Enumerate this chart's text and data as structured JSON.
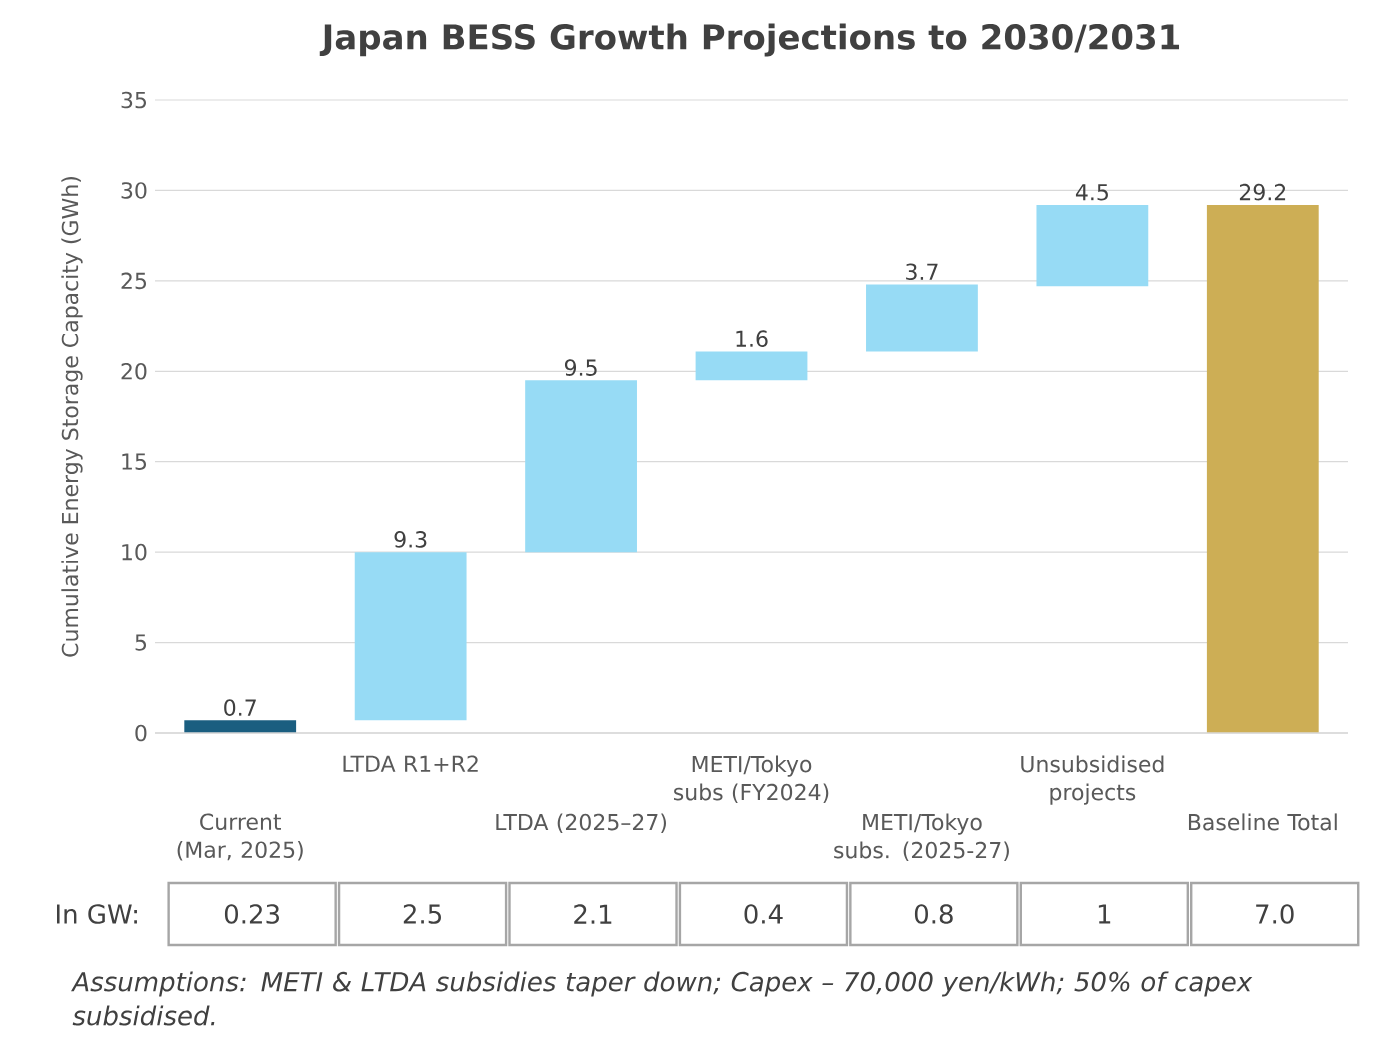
{
  "chart_data": {
    "type": "bar",
    "title": "Japan BESS Growth Projections to 2030/2031",
    "ylabel": "Cumulative Energy Storage Capacity (GWh)",
    "categories": [
      "Current (Mar, 2025)",
      "LTDA R1+R2",
      "LTDA (2025–27)",
      "METI/Tokyo subs (FY2024)",
      "METI/Tokyo subs. (2025-27)",
      "Unsubsidised projects",
      "Baseline Total"
    ],
    "values": [
      0.7,
      9.3,
      9.5,
      1.6,
      3.7,
      4.5,
      29.2
    ],
    "base": [
      0,
      0.7,
      10,
      19.5,
      21.1,
      24.7,
      0
    ],
    "colors": [
      "#1a5e80",
      "#97dbf5",
      "#97dbf5",
      "#97dbf5",
      "#97dbf5",
      "#97dbf5",
      "#cdae55"
    ],
    "ylim": [
      0,
      35
    ],
    "yticks": [
      0,
      5,
      10,
      15,
      20,
      25,
      30,
      35
    ],
    "grid": "y",
    "data_labels": true,
    "annotations": [
      "In GW:",
      "0.23",
      "2.5",
      "2.1",
      "0.4",
      "0.8",
      "1",
      "7.0",
      "Assumptions: METI & LTDA subsidies taper down; Capex – 70,000 yen/kWh; 50% of capex subsidised."
    ]
  }
}
